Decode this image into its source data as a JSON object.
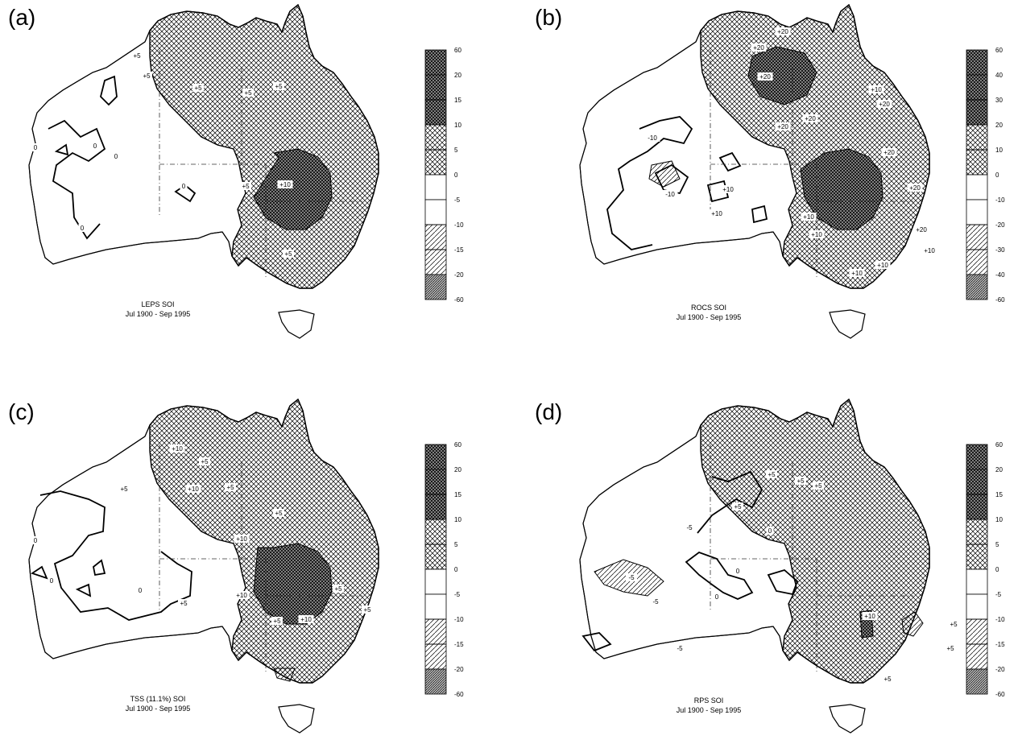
{
  "panels": [
    {
      "label": "(a)",
      "caption_line1": "LEPS  SOI",
      "caption_line2": "Jul 1900 - Sep 1995",
      "legend_ticks": [
        "60",
        "20",
        "15",
        "10",
        "5",
        "0",
        "-5",
        "-10",
        "-15",
        "-20",
        "-60"
      ],
      "contour_labels": [
        "+5",
        "+5",
        "+5",
        "+5",
        "+5",
        "0",
        "0",
        "0",
        "0",
        "0",
        "+5",
        "+10",
        "+5"
      ]
    },
    {
      "label": "(b)",
      "caption_line1": "ROCS  SOI",
      "caption_line2": "Jul 1900 - Sep 1995",
      "legend_ticks": [
        "60",
        "40",
        "30",
        "20",
        "10",
        "0",
        "-10",
        "-20",
        "-30",
        "-40",
        "-60"
      ],
      "contour_labels": [
        "+20",
        "+20",
        "+20",
        "+20",
        "+20",
        "+10",
        "+20",
        "+20",
        "+20",
        "-10",
        "-10",
        "+10",
        "+10",
        "+10",
        "+10",
        "+10",
        "+20",
        "+10",
        "+10"
      ]
    },
    {
      "label": "(c)",
      "caption_line1": "TSS (11.1%)  SOI",
      "caption_line2": "Jul 1900 - Sep 1995",
      "legend_ticks": [
        "60",
        "20",
        "15",
        "10",
        "5",
        "0",
        "-5",
        "-10",
        "-15",
        "-20",
        "-60"
      ],
      "contour_labels": [
        "+10",
        "+5",
        "+5",
        "+10",
        "+5",
        "+5",
        "+10",
        "+10",
        "+10",
        "0",
        "0",
        "0",
        "+5",
        "+5",
        "+5",
        "+5"
      ]
    },
    {
      "label": "(d)",
      "caption_line1": "RPS  SOI",
      "caption_line2": "Jul 1900 - Sep 1995",
      "legend_ticks": [
        "60",
        "20",
        "15",
        "10",
        "5",
        "0",
        "-5",
        "-10",
        "-15",
        "-20",
        "-60"
      ],
      "contour_labels": [
        "+5",
        "+5",
        "+5",
        "+5",
        "-5",
        "-5",
        "-5",
        "-5",
        "0",
        "0",
        "0",
        "+10",
        "+5",
        "+5",
        "+5"
      ]
    }
  ]
}
